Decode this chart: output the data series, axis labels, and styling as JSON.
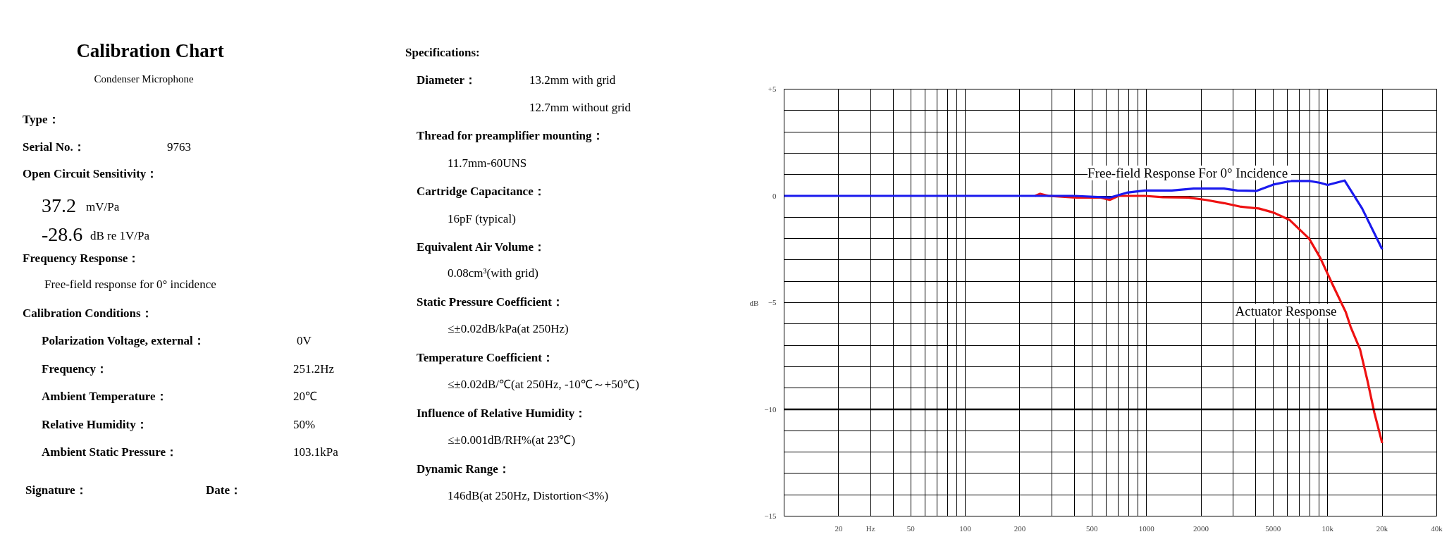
{
  "chart_data": [
    {
      "type": "other",
      "title": "Calibration Chart",
      "subtitle": "Condenser Microphone",
      "annotations": [
        "Type：",
        "Serial No.：",
        "9763",
        "Open Circuit Sensitivity：",
        "37.2",
        "mV/Pa",
        "-28.6",
        "dB re 1V/Pa",
        "Frequency Response：",
        "Free-field response for 0° incidence",
        "Calibration Conditions：",
        "Polarization Voltage, external：",
        "0V",
        "Frequency：",
        "251.2Hz",
        "Ambient Temperature：",
        "20℃",
        "Relative Humidity：",
        "50%",
        "Ambient Static Pressure：",
        "103.1kPa",
        "Signature：",
        "Date：",
        "Specifications:",
        "Diameter：",
        "13.2mm with grid",
        "12.7mm without grid",
        "Thread for preamplifier mounting：",
        "11.7mm-60UNS",
        "Cartridge Capacitance：",
        "16pF (typical)",
        "Equivalent Air Volume：",
        "0.08cm³(with grid)",
        "Static Pressure Coefficient：",
        "≤±0.02dB/kPa(at 250Hz)",
        "Temperature Coefficient：",
        "≤±0.02dB/℃(at 250Hz, -10℃～+50℃)",
        "Influence of Relative Humidity：",
        "≤±0.001dB/RH%(at 23℃)",
        "Dynamic Range：",
        "146dB(at 250Hz, Distortion<3%)"
      ]
    },
    {
      "type": "line",
      "log": "x",
      "grid": true,
      "ylabel": "dB",
      "xlim": [
        10,
        40000
      ],
      "xticks": [
        {
          "value": 10,
          "label": null
        },
        20,
        {
          "value": 30,
          "label": "Hz"
        },
        {
          "value": 40,
          "label": null
        },
        50,
        {
          "value": 60,
          "label": null
        },
        {
          "value": 70,
          "label": null
        },
        {
          "value": 80,
          "label": null
        },
        {
          "value": 90,
          "label": null
        },
        100,
        200,
        {
          "value": 300,
          "label": null
        },
        {
          "value": 400,
          "label": null
        },
        500,
        {
          "value": 600,
          "label": null
        },
        {
          "value": 700,
          "label": null
        },
        {
          "value": 800,
          "label": null
        },
        {
          "value": 900,
          "label": null
        },
        1000,
        2000,
        {
          "value": 3000,
          "label": null
        },
        {
          "value": 4000,
          "label": null
        },
        5000,
        {
          "value": 6000,
          "label": null
        },
        {
          "value": 7000,
          "label": null
        },
        {
          "value": 8000,
          "label": null
        },
        {
          "value": 9000,
          "label": null
        },
        {
          "value": 10000,
          "label": "10k"
        },
        {
          "value": 20000,
          "label": "20k"
        },
        {
          "value": 40000,
          "label": "40k"
        }
      ],
      "ylim": [
        -15,
        5
      ],
      "yticks": [
        -15,
        {
          "value": -14,
          "label": null
        },
        {
          "value": -13,
          "label": null
        },
        {
          "value": -12,
          "label": null
        },
        {
          "value": -11,
          "label": null
        },
        -10,
        {
          "value": -9,
          "label": null
        },
        {
          "value": -8,
          "label": null
        },
        {
          "value": -7,
          "label": null
        },
        {
          "value": -6,
          "label": null
        },
        -5,
        {
          "value": -4,
          "label": null
        },
        {
          "value": -3,
          "label": null
        },
        {
          "value": -2,
          "label": null
        },
        {
          "value": -1,
          "label": null
        },
        0,
        {
          "value": 1,
          "label": null
        },
        {
          "value": 2,
          "label": null
        },
        {
          "value": 3,
          "label": null
        },
        {
          "value": 4,
          "label": null
        },
        {
          "value": 5,
          "label": "+5"
        }
      ],
      "ref_lines": [
        {
          "axis": "y",
          "value": -10,
          "color": "#000000"
        }
      ],
      "series": [
        {
          "name": "Actuator Response",
          "color": "#ee1111",
          "x": [
            243,
            259,
            287,
            412,
            560,
            627,
            700,
            980,
            1230,
            1700,
            2130,
            2680,
            3330,
            4170,
            5020,
            6150,
            7900,
            9100,
            10700,
            12600,
            13400,
            15100,
            16600,
            18100,
            20000
          ],
          "values": [
            0,
            0.1,
            0,
            -0.08,
            -0.08,
            -0.19,
            0,
            0,
            -0.06,
            -0.08,
            -0.19,
            -0.34,
            -0.51,
            -0.59,
            -0.78,
            -1.12,
            -2.0,
            -2.9,
            -4.19,
            -5.45,
            -6.14,
            -7.19,
            -8.67,
            -10.15,
            -11.58
          ]
        },
        {
          "name": "Free-field Response For 0°  Incidence",
          "color": "#1a1aee",
          "x": [
            10,
            400,
            627,
            780,
            980,
            1380,
            1820,
            2680,
            3170,
            4040,
            5020,
            6300,
            7900,
            9100,
            10000,
            12400,
            15500,
            20000
          ],
          "values": [
            0,
            0,
            -0.08,
            0.15,
            0.25,
            0.25,
            0.34,
            0.34,
            0.25,
            0.23,
            0.53,
            0.7,
            0.7,
            0.61,
            0.51,
            0.72,
            -0.59,
            -2.5
          ]
        }
      ]
    }
  ]
}
